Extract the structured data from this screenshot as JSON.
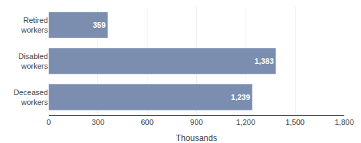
{
  "chart_data": {
    "type": "bar",
    "orientation": "horizontal",
    "categories": [
      "Deceased\nworkers",
      "Disabled\nworkers",
      "Retired\nworkers"
    ],
    "values": [
      1239,
      1383,
      359
    ],
    "value_labels": [
      "1,239",
      "1,383",
      "359"
    ],
    "data_labels": true,
    "color": "#7b8eb0",
    "xlabel": "Thousands",
    "xlim": [
      0,
      1800
    ],
    "xticks": [
      0,
      300,
      600,
      900,
      {
        "value": 1200,
        "label": "1,200"
      },
      {
        "value": 1500,
        "label": "1,500"
      },
      {
        "value": 1800,
        "label": "1,800"
      }
    ],
    "grid": true
  }
}
